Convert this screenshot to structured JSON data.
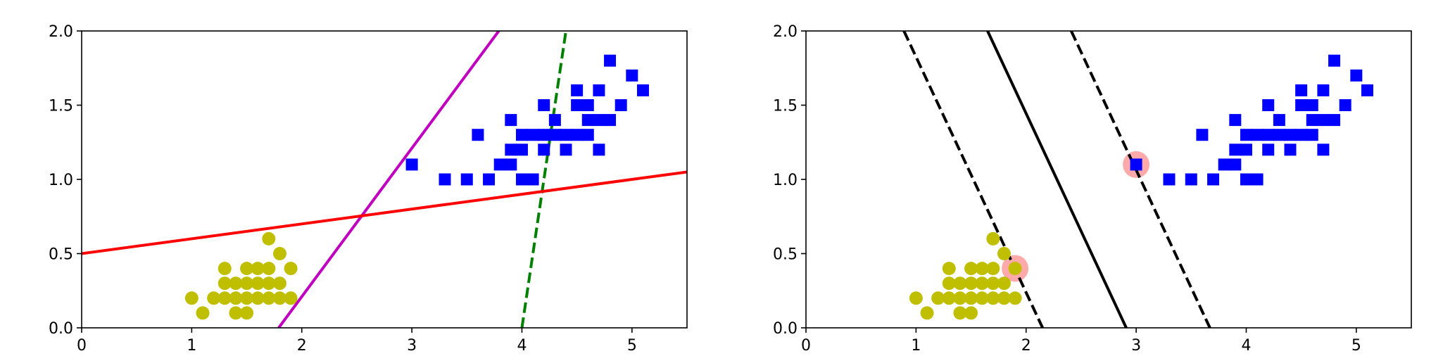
{
  "chart_data": [
    {
      "type": "scatter",
      "title": "",
      "xlabel": "",
      "ylabel": "",
      "xlim": [
        0,
        5.5
      ],
      "ylim": [
        0,
        2.0
      ],
      "xticks": [
        "0",
        "1",
        "2",
        "3",
        "4",
        "5"
      ],
      "yticks": [
        "0.0",
        "0.5",
        "1.0",
        "1.5",
        "2.0"
      ],
      "grid": false,
      "series": [
        {
          "marker": "circle",
          "color": "#bfbf00",
          "points": [
            [
              1.0,
              0.2
            ],
            [
              1.1,
              0.1
            ],
            [
              1.2,
              0.2
            ],
            [
              1.3,
              0.2
            ],
            [
              1.4,
              0.2
            ],
            [
              1.5,
              0.2
            ],
            [
              1.6,
              0.2
            ],
            [
              1.7,
              0.2
            ],
            [
              1.8,
              0.2
            ],
            [
              1.9,
              0.2
            ],
            [
              1.3,
              0.3
            ],
            [
              1.4,
              0.3
            ],
            [
              1.5,
              0.3
            ],
            [
              1.6,
              0.3
            ],
            [
              1.7,
              0.3
            ],
            [
              1.8,
              0.3
            ],
            [
              1.3,
              0.4
            ],
            [
              1.5,
              0.4
            ],
            [
              1.6,
              0.4
            ],
            [
              1.7,
              0.4
            ],
            [
              1.9,
              0.4
            ],
            [
              1.8,
              0.5
            ],
            [
              1.7,
              0.6
            ],
            [
              1.4,
              0.1
            ],
            [
              1.5,
              0.1
            ]
          ]
        },
        {
          "marker": "square",
          "color": "#0000ff",
          "points": [
            [
              3.0,
              1.1
            ],
            [
              3.3,
              1.0
            ],
            [
              3.5,
              1.0
            ],
            [
              3.7,
              1.0
            ],
            [
              3.8,
              1.1
            ],
            [
              3.9,
              1.1
            ],
            [
              3.9,
              1.2
            ],
            [
              4.0,
              1.0
            ],
            [
              4.1,
              1.0
            ],
            [
              4.0,
              1.2
            ],
            [
              4.0,
              1.3
            ],
            [
              4.1,
              1.3
            ],
            [
              4.2,
              1.3
            ],
            [
              4.3,
              1.3
            ],
            [
              4.4,
              1.3
            ],
            [
              4.5,
              1.3
            ],
            [
              4.6,
              1.3
            ],
            [
              4.2,
              1.2
            ],
            [
              4.4,
              1.2
            ],
            [
              4.7,
              1.2
            ],
            [
              3.6,
              1.3
            ],
            [
              3.9,
              1.4
            ],
            [
              4.3,
              1.4
            ],
            [
              4.6,
              1.4
            ],
            [
              4.7,
              1.4
            ],
            [
              4.8,
              1.4
            ],
            [
              4.2,
              1.5
            ],
            [
              4.5,
              1.5
            ],
            [
              4.6,
              1.5
            ],
            [
              4.9,
              1.5
            ],
            [
              4.5,
              1.6
            ],
            [
              4.7,
              1.6
            ],
            [
              5.1,
              1.6
            ],
            [
              5.0,
              1.7
            ],
            [
              4.8,
              1.8
            ]
          ]
        }
      ],
      "lines": [
        {
          "style": "dashed",
          "color": "#008000",
          "x": [
            4.0,
            4.4
          ],
          "y": [
            0.0,
            2.0
          ]
        },
        {
          "style": "solid",
          "color": "#bf00bf",
          "x": [
            1.79,
            3.79
          ],
          "y": [
            0.0,
            2.0
          ]
        },
        {
          "style": "solid",
          "color": "#ff0000",
          "x": [
            0.0,
            5.5
          ],
          "y": [
            0.5,
            1.05
          ]
        }
      ]
    },
    {
      "type": "scatter",
      "title": "",
      "xlabel": "",
      "ylabel": "",
      "xlim": [
        0,
        5.5
      ],
      "ylim": [
        0,
        2.0
      ],
      "xticks": [
        "0",
        "1",
        "2",
        "3",
        "4",
        "5"
      ],
      "yticks": [
        "0.0",
        "0.5",
        "1.0",
        "1.5",
        "2.0"
      ],
      "grid": false,
      "support_vectors": {
        "color": "#ffaaaa",
        "points": [
          [
            1.9,
            0.4
          ],
          [
            3.0,
            1.1
          ]
        ]
      },
      "series": [
        {
          "marker": "circle",
          "color": "#bfbf00",
          "points": [
            [
              1.0,
              0.2
            ],
            [
              1.1,
              0.1
            ],
            [
              1.2,
              0.2
            ],
            [
              1.3,
              0.2
            ],
            [
              1.4,
              0.2
            ],
            [
              1.5,
              0.2
            ],
            [
              1.6,
              0.2
            ],
            [
              1.7,
              0.2
            ],
            [
              1.8,
              0.2
            ],
            [
              1.9,
              0.2
            ],
            [
              1.3,
              0.3
            ],
            [
              1.4,
              0.3
            ],
            [
              1.5,
              0.3
            ],
            [
              1.6,
              0.3
            ],
            [
              1.7,
              0.3
            ],
            [
              1.8,
              0.3
            ],
            [
              1.3,
              0.4
            ],
            [
              1.5,
              0.4
            ],
            [
              1.6,
              0.4
            ],
            [
              1.7,
              0.4
            ],
            [
              1.9,
              0.4
            ],
            [
              1.8,
              0.5
            ],
            [
              1.7,
              0.6
            ],
            [
              1.4,
              0.1
            ],
            [
              1.5,
              0.1
            ]
          ]
        },
        {
          "marker": "square",
          "color": "#0000ff",
          "points": [
            [
              3.0,
              1.1
            ],
            [
              3.3,
              1.0
            ],
            [
              3.5,
              1.0
            ],
            [
              3.7,
              1.0
            ],
            [
              3.8,
              1.1
            ],
            [
              3.9,
              1.1
            ],
            [
              3.9,
              1.2
            ],
            [
              4.0,
              1.0
            ],
            [
              4.1,
              1.0
            ],
            [
              4.0,
              1.2
            ],
            [
              4.0,
              1.3
            ],
            [
              4.1,
              1.3
            ],
            [
              4.2,
              1.3
            ],
            [
              4.3,
              1.3
            ],
            [
              4.4,
              1.3
            ],
            [
              4.5,
              1.3
            ],
            [
              4.6,
              1.3
            ],
            [
              4.2,
              1.2
            ],
            [
              4.4,
              1.2
            ],
            [
              4.7,
              1.2
            ],
            [
              3.6,
              1.3
            ],
            [
              3.9,
              1.4
            ],
            [
              4.3,
              1.4
            ],
            [
              4.6,
              1.4
            ],
            [
              4.7,
              1.4
            ],
            [
              4.8,
              1.4
            ],
            [
              4.2,
              1.5
            ],
            [
              4.5,
              1.5
            ],
            [
              4.6,
              1.5
            ],
            [
              4.9,
              1.5
            ],
            [
              4.5,
              1.6
            ],
            [
              4.7,
              1.6
            ],
            [
              5.1,
              1.6
            ],
            [
              5.0,
              1.7
            ],
            [
              4.8,
              1.8
            ]
          ]
        }
      ],
      "lines": [
        {
          "style": "solid",
          "color": "#000000",
          "x": [
            1.65,
            2.91
          ],
          "y": [
            2.0,
            0.0
          ]
        },
        {
          "style": "dashed",
          "color": "#000000",
          "x": [
            0.89,
            2.15
          ],
          "y": [
            2.0,
            0.0
          ]
        },
        {
          "style": "dashed",
          "color": "#000000",
          "x": [
            2.41,
            3.67
          ],
          "y": [
            2.0,
            0.0
          ]
        }
      ]
    }
  ]
}
